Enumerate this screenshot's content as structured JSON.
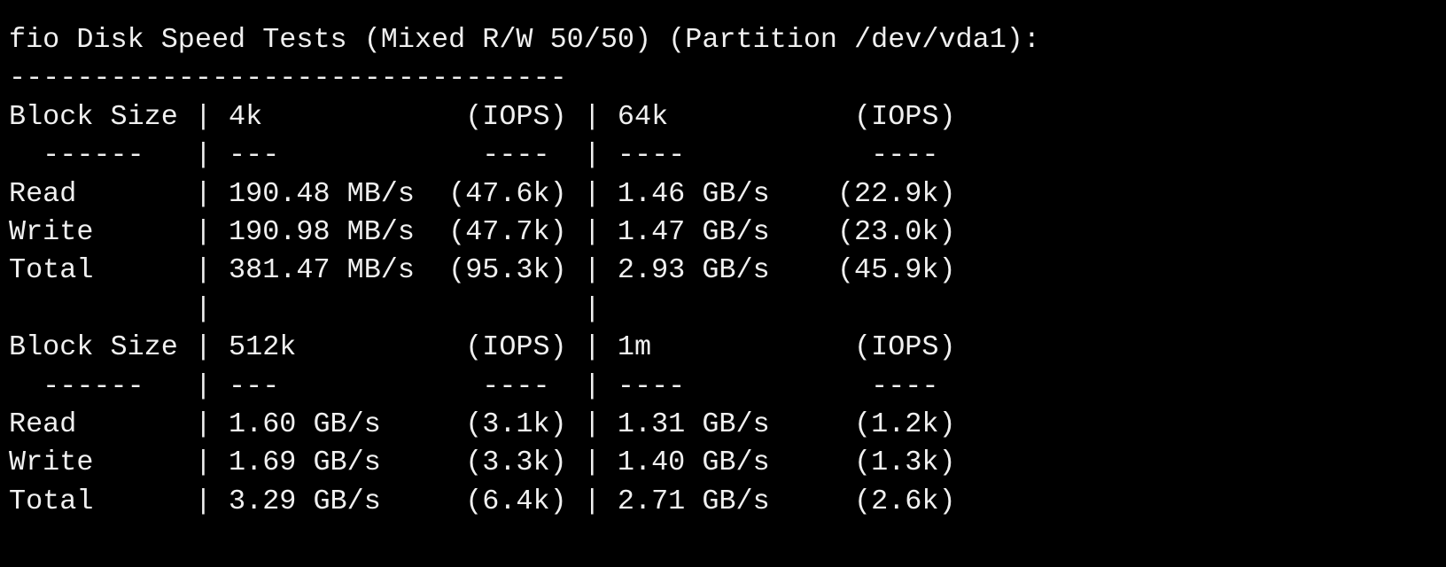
{
  "terminal": {
    "lines": [
      "fio Disk Speed Tests (Mixed R/W 50/50) (Partition /dev/vda1):",
      "---------------------------------",
      "Block Size | 4k            (IOPS) | 64k           (IOPS)",
      "  ------   | ---            ----  | ----           ---- ",
      "Read       | 190.48 MB/s  (47.6k) | 1.46 GB/s    (22.9k)",
      "Write      | 190.98 MB/s  (47.7k) | 1.47 GB/s    (23.0k)",
      "Total      | 381.47 MB/s  (95.3k) | 2.93 GB/s    (45.9k)",
      "           |                      |                     ",
      "Block Size | 512k          (IOPS) | 1m            (IOPS)",
      "  ------   | ---            ----  | ----           ---- ",
      "Read       | 1.60 GB/s     (3.1k) | 1.31 GB/s     (1.2k)",
      "Write      | 1.69 GB/s     (3.3k) | 1.40 GB/s     (1.3k)",
      "Total      | 3.29 GB/s     (6.4k) | 2.71 GB/s     (2.6k)"
    ]
  }
}
